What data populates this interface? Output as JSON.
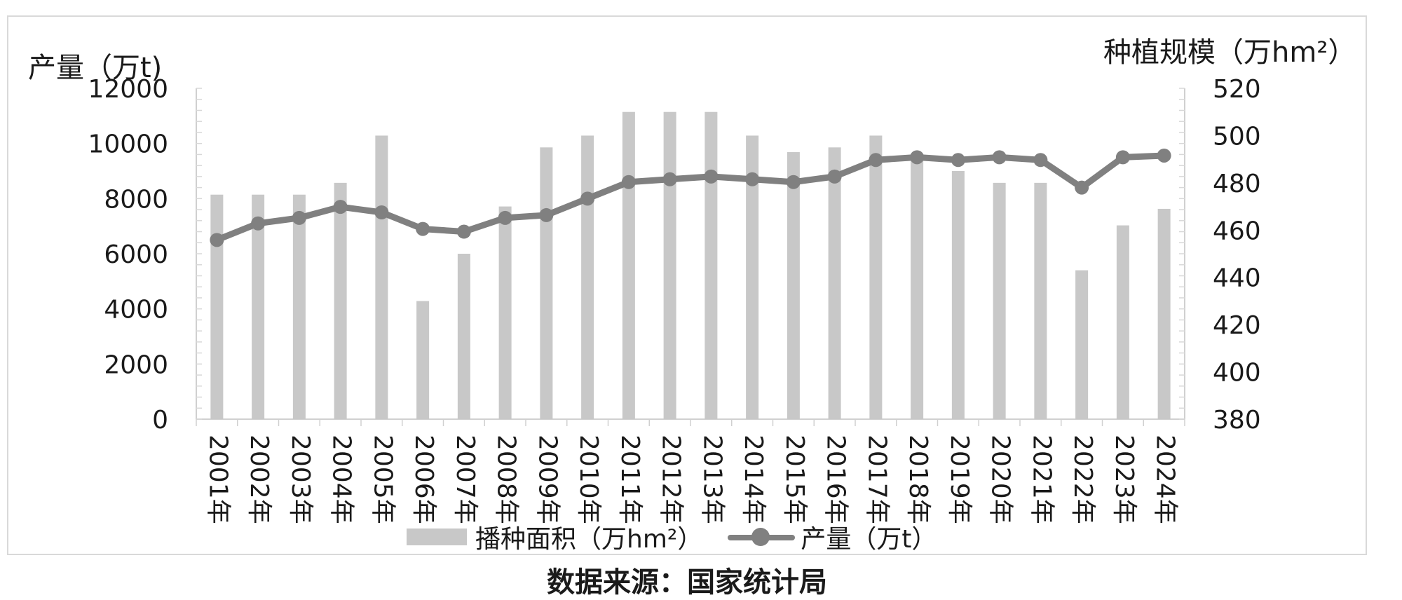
{
  "chart_data": {
    "type": "bar+line",
    "categories": [
      "2001年",
      "2002年",
      "2003年",
      "2004年",
      "2005年",
      "2006年",
      "2007年",
      "2008年",
      "2009年",
      "2010年",
      "2011年",
      "2012年",
      "2013年",
      "2014年",
      "2015年",
      "2016年",
      "2017年",
      "2018年",
      "2019年",
      "2020年",
      "2021年",
      "2022年",
      "2023年",
      "2024年"
    ],
    "series": [
      {
        "name": "播种面积（万hm²）",
        "kind": "bar",
        "axis": "right",
        "color": "#c8c8c8",
        "values": [
          475,
          475,
          475,
          480,
          500,
          430,
          450,
          470,
          495,
          500,
          510,
          510,
          510,
          500,
          493,
          495,
          500,
          490,
          485,
          480,
          480,
          443,
          462,
          469
        ]
      },
      {
        "name": "产量（万t）",
        "kind": "line",
        "axis": "left",
        "color": "#808080",
        "values": [
          6500,
          7100,
          7300,
          7700,
          7500,
          6900,
          6800,
          7300,
          7400,
          8000,
          8600,
          8700,
          8800,
          8700,
          8600,
          8800,
          9400,
          9500,
          9400,
          9500,
          9400,
          8400,
          9500,
          9560
        ]
      }
    ],
    "left_axis": {
      "label": "产量（万t)",
      "ylim": [
        0,
        12000
      ],
      "ticks": [
        "0",
        "2000",
        "4000",
        "6000",
        "8000",
        "10000",
        "12000"
      ]
    },
    "right_axis": {
      "label": "种植规模（万hm²）",
      "ylim": [
        380,
        520
      ],
      "ticks": [
        "380",
        "400",
        "420",
        "440",
        "460",
        "480",
        "500",
        "520"
      ]
    },
    "legend_position": "bottom",
    "grid": false
  },
  "source": "数据来源：国家统计局"
}
